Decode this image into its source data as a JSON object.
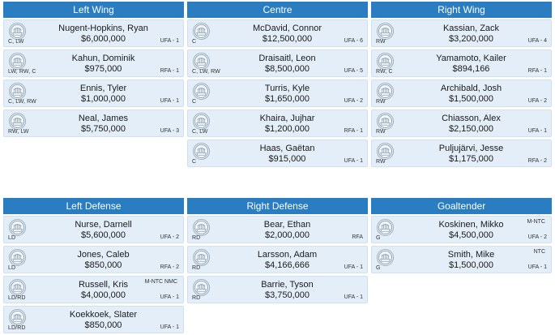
{
  "forwards": {
    "headers": [
      "Left Wing",
      "Centre",
      "Right Wing"
    ],
    "columns": [
      [
        {
          "name": "Nugent-Hopkins, Ryan",
          "salary": "$6,000,000",
          "pos": "C, LW",
          "contract": "UFA - 1",
          "clause": ""
        },
        {
          "name": "Kahun, Dominik",
          "salary": "$975,000",
          "pos": "LW, RW, C",
          "contract": "RFA - 1",
          "clause": ""
        },
        {
          "name": "Ennis, Tyler",
          "salary": "$1,000,000",
          "pos": "C, LW, RW",
          "contract": "UFA - 1",
          "clause": ""
        },
        {
          "name": "Neal, James",
          "salary": "$5,750,000",
          "pos": "RW, LW",
          "contract": "UFA - 3",
          "clause": ""
        }
      ],
      [
        {
          "name": "McDavid, Connor",
          "salary": "$12,500,000",
          "pos": "C",
          "contract": "UFA - 6",
          "clause": ""
        },
        {
          "name": "Draisaitl, Leon",
          "salary": "$8,500,000",
          "pos": "C, LW, RW",
          "contract": "UFA - 5",
          "clause": ""
        },
        {
          "name": "Turris, Kyle",
          "salary": "$1,650,000",
          "pos": "C",
          "contract": "UFA - 2",
          "clause": ""
        },
        {
          "name": "Khaira, Jujhar",
          "salary": "$1,200,000",
          "pos": "C, LW",
          "contract": "RFA - 1",
          "clause": ""
        },
        {
          "name": "Haas, Gaëtan",
          "salary": "$915,000",
          "pos": "C",
          "contract": "UFA - 1",
          "clause": ""
        }
      ],
      [
        {
          "name": "Kassian, Zack",
          "salary": "$3,200,000",
          "pos": "RW",
          "contract": "UFA - 4",
          "clause": ""
        },
        {
          "name": "Yamamoto, Kailer",
          "salary": "$894,166",
          "pos": "RW, C",
          "contract": "RFA - 1",
          "clause": ""
        },
        {
          "name": "Archibald, Josh",
          "salary": "$1,500,000",
          "pos": "RW",
          "contract": "UFA - 2",
          "clause": ""
        },
        {
          "name": "Chiasson, Alex",
          "salary": "$2,150,000",
          "pos": "RW",
          "contract": "UFA - 1",
          "clause": ""
        },
        {
          "name": "Puljujärvi, Jesse",
          "salary": "$1,175,000",
          "pos": "RW",
          "contract": "RFA - 2",
          "clause": ""
        }
      ]
    ]
  },
  "defense": {
    "headers": [
      "Left Defense",
      "Right Defense",
      "Goaltender"
    ],
    "columns": [
      [
        {
          "name": "Nurse, Darnell",
          "salary": "$5,600,000",
          "pos": "LD",
          "contract": "UFA - 2",
          "clause": ""
        },
        {
          "name": "Jones, Caleb",
          "salary": "$850,000",
          "pos": "LD",
          "contract": "RFA - 2",
          "clause": ""
        },
        {
          "name": "Russell, Kris",
          "salary": "$4,000,000",
          "pos": "LD/RD",
          "contract": "UFA - 1",
          "clause": "M-NTC NMC"
        },
        {
          "name": "Koekkoek, Slater",
          "salary": "$850,000",
          "pos": "LD/RD",
          "contract": "UFA - 1",
          "clause": ""
        }
      ],
      [
        {
          "name": "Bear, Ethan",
          "salary": "$2,000,000",
          "pos": "RD",
          "contract": "RFA",
          "clause": ""
        },
        {
          "name": "Larsson, Adam",
          "salary": "$4,166,666",
          "pos": "RD",
          "contract": "UFA - 1",
          "clause": ""
        },
        {
          "name": "Barrie, Tyson",
          "salary": "$3,750,000",
          "pos": "RD",
          "contract": "UFA - 1",
          "clause": ""
        }
      ],
      [
        {
          "name": "Koskinen, Mikko",
          "salary": "$4,500,000",
          "pos": "G",
          "contract": "UFA - 2",
          "clause": "M-NTC"
        },
        {
          "name": "Smith, Mike",
          "salary": "$1,500,000",
          "pos": "G",
          "contract": "UFA - 1",
          "clause": "NTC"
        }
      ]
    ]
  },
  "logo_icon": "team-logo-icon",
  "colors": {
    "header": "#2a7dc0",
    "card": "#e3eef8",
    "card_border": "#cfe0ef"
  }
}
